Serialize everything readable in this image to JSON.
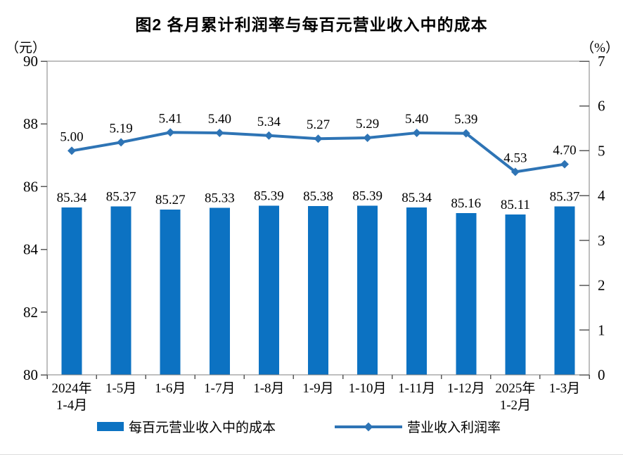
{
  "colors": {
    "bar": "#0c72c2",
    "line": "#2e74b5",
    "axis": "#7f7f7f",
    "tick": "#595959",
    "text": "#000000"
  },
  "chart_data": {
    "type": "bar+line",
    "title": "图2 各月累计利润率与每百元营业收入中的成本",
    "categories": [
      "2024年\n1-4月",
      "1-5月",
      "1-6月",
      "1-7月",
      "1-8月",
      "1-9月",
      "1-10月",
      "1-11月",
      "1-12月",
      "2025年\n1-2月",
      "1-3月"
    ],
    "series": [
      {
        "name": "每百元营业收入中的成本",
        "type": "bar",
        "axis": "left",
        "values": [
          85.34,
          85.37,
          85.27,
          85.33,
          85.39,
          85.38,
          85.39,
          85.34,
          85.16,
          85.11,
          85.37
        ]
      },
      {
        "name": "营业收入利润率",
        "type": "line",
        "axis": "right",
        "values": [
          5.0,
          5.19,
          5.41,
          5.4,
          5.34,
          5.27,
          5.29,
          5.4,
          5.39,
          4.53,
          4.7
        ]
      }
    ],
    "left_axis": {
      "unit": "（元）",
      "lim": [
        80,
        90
      ],
      "ticks": [
        90,
        88,
        86,
        84,
        82,
        80
      ]
    },
    "right_axis": {
      "unit": "（%）",
      "lim": [
        0,
        7
      ],
      "ticks": [
        7,
        6,
        5,
        4,
        3,
        2,
        1,
        0
      ]
    },
    "grid": false,
    "legend_position": "bottom",
    "legend": [
      {
        "name": "每百元营业收入中的成本",
        "marker": "bar"
      },
      {
        "name": "营业收入利润率",
        "marker": "line-diamond"
      }
    ]
  }
}
